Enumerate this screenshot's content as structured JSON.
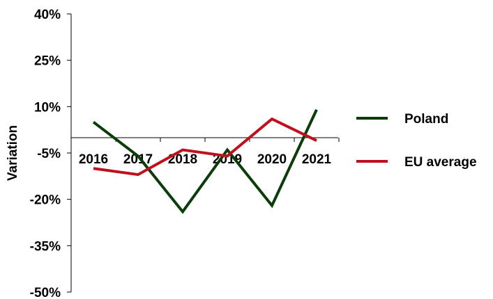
{
  "chart_data": {
    "type": "line",
    "title": "",
    "xlabel": "",
    "ylabel": "Variation",
    "categories": [
      "2016",
      "2017",
      "2018",
      "2019",
      "2020",
      "2021"
    ],
    "y_ticks": [
      "40%",
      "25%",
      "10%",
      "-5%",
      "-20%",
      "-35%",
      "-50%"
    ],
    "y_tick_values": [
      40,
      25,
      10,
      -5,
      -20,
      -35,
      -50
    ],
    "ylim": [
      -50,
      40
    ],
    "grid": false,
    "legend_position": "right",
    "series": [
      {
        "name": "Poland",
        "color": "#0b3d0b",
        "values": [
          5,
          -6,
          -24,
          -4,
          -22,
          9
        ]
      },
      {
        "name": "EU average",
        "color": "#c0101e",
        "values": [
          -10,
          -12,
          -4,
          -6,
          6,
          -1
        ]
      }
    ]
  }
}
